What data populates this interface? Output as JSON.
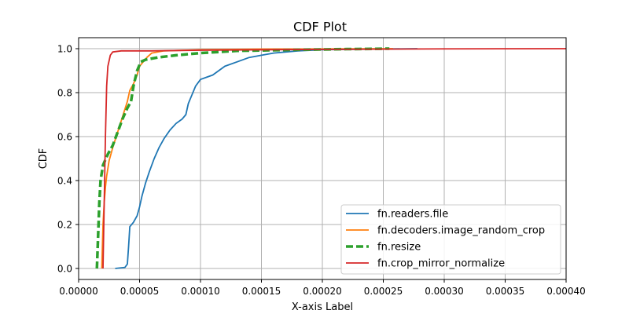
{
  "chart_data": {
    "type": "line",
    "title": "CDF Plot",
    "xlabel": "X-axis Label",
    "ylabel": "CDF",
    "xlim": [
      0,
      0.0004
    ],
    "ylim": [
      -0.05,
      1.05
    ],
    "x_ticks": [
      "0.00000",
      "0.00005",
      "0.00010",
      "0.00015",
      "0.00020",
      "0.00025",
      "0.00030",
      "0.00035",
      "0.00040"
    ],
    "x_tick_values": [
      0,
      5e-05,
      0.0001,
      0.00015,
      0.0002,
      0.00025,
      0.0003,
      0.00035,
      0.0004
    ],
    "y_ticks": [
      "0.0",
      "0.2",
      "0.4",
      "0.6",
      "0.8",
      "1.0"
    ],
    "y_tick_values": [
      0,
      0.2,
      0.4,
      0.6,
      0.8,
      1.0
    ],
    "grid": true,
    "legend_position": "bottom-right",
    "series": [
      {
        "name": "fn.readers.file",
        "color": "#1f77b4",
        "style": "solid",
        "points": [
          [
            3e-05,
            0.0
          ],
          [
            3.8e-05,
            0.005
          ],
          [
            4e-05,
            0.02
          ],
          [
            4.1e-05,
            0.1
          ],
          [
            4.2e-05,
            0.19
          ],
          [
            4.5e-05,
            0.21
          ],
          [
            4.8e-05,
            0.24
          ],
          [
            5e-05,
            0.28
          ],
          [
            5.2e-05,
            0.33
          ],
          [
            5.5e-05,
            0.39
          ],
          [
            5.8e-05,
            0.44
          ],
          [
            6.2e-05,
            0.5
          ],
          [
            6.6e-05,
            0.55
          ],
          [
            7e-05,
            0.59
          ],
          [
            7.5e-05,
            0.63
          ],
          [
            8e-05,
            0.66
          ],
          [
            8.5e-05,
            0.68
          ],
          [
            8.8e-05,
            0.7
          ],
          [
            9e-05,
            0.75
          ],
          [
            9.3e-05,
            0.79
          ],
          [
            9.6e-05,
            0.83
          ],
          [
            0.0001,
            0.86
          ],
          [
            0.000105,
            0.87
          ],
          [
            0.00011,
            0.88
          ],
          [
            0.000115,
            0.9
          ],
          [
            0.00012,
            0.92
          ],
          [
            0.00013,
            0.94
          ],
          [
            0.00014,
            0.96
          ],
          [
            0.00015,
            0.97
          ],
          [
            0.00016,
            0.98
          ],
          [
            0.00018,
            0.99
          ],
          [
            0.0002,
            0.995
          ],
          [
            0.00024,
            0.998
          ],
          [
            0.000278,
            1.0
          ]
        ]
      },
      {
        "name": "fn.decoders.image_random_crop",
        "color": "#ff7f0e",
        "style": "solid",
        "points": [
          [
            1.9e-05,
            0.0
          ],
          [
            2e-05,
            0.2
          ],
          [
            2.1e-05,
            0.3
          ],
          [
            2.2e-05,
            0.37
          ],
          [
            2.3e-05,
            0.42
          ],
          [
            2.5e-05,
            0.49
          ],
          [
            2.8e-05,
            0.55
          ],
          [
            3.2e-05,
            0.62
          ],
          [
            3.6e-05,
            0.69
          ],
          [
            4e-05,
            0.76
          ],
          [
            4.2e-05,
            0.81
          ],
          [
            4.5e-05,
            0.84
          ],
          [
            4.8e-05,
            0.88
          ],
          [
            5e-05,
            0.92
          ],
          [
            5.3e-05,
            0.94
          ],
          [
            5.6e-05,
            0.96
          ],
          [
            6e-05,
            0.98
          ],
          [
            7e-05,
            0.99
          ],
          [
            0.0001,
            0.995
          ],
          [
            0.00015,
            0.998
          ],
          [
            0.000258,
            1.0
          ]
        ]
      },
      {
        "name": "fn.resize",
        "color": "#2ca02c",
        "style": "dashed",
        "points": [
          [
            1.5e-05,
            0.0
          ],
          [
            1.6e-05,
            0.15
          ],
          [
            1.7e-05,
            0.3
          ],
          [
            1.8e-05,
            0.4
          ],
          [
            2e-05,
            0.47
          ],
          [
            2.4e-05,
            0.52
          ],
          [
            2.8e-05,
            0.56
          ],
          [
            3.2e-05,
            0.62
          ],
          [
            3.6e-05,
            0.68
          ],
          [
            4e-05,
            0.73
          ],
          [
            4.3e-05,
            0.76
          ],
          [
            4.5e-05,
            0.83
          ],
          [
            4.8e-05,
            0.9
          ],
          [
            5.1e-05,
            0.94
          ],
          [
            5.5e-05,
            0.95
          ],
          [
            6.5e-05,
            0.96
          ],
          [
            8e-05,
            0.97
          ],
          [
            0.0001,
            0.98
          ],
          [
            0.00013,
            0.99
          ],
          [
            0.00018,
            0.995
          ],
          [
            0.00022,
            0.998
          ],
          [
            0.000255,
            1.0
          ]
        ]
      },
      {
        "name": "fn.crop_mirror_normalize",
        "color": "#d62728",
        "style": "solid",
        "points": [
          [
            2e-05,
            0.0
          ],
          [
            2.1e-05,
            0.3
          ],
          [
            2.2e-05,
            0.6
          ],
          [
            2.3e-05,
            0.83
          ],
          [
            2.4e-05,
            0.92
          ],
          [
            2.6e-05,
            0.97
          ],
          [
            2.8e-05,
            0.985
          ],
          [
            3.5e-05,
            0.99
          ],
          [
            6e-05,
            0.99
          ],
          [
            0.0001,
            0.993
          ],
          [
            0.0002,
            0.997
          ],
          [
            0.0003,
            0.999
          ],
          [
            0.0004,
            1.0
          ]
        ]
      }
    ]
  }
}
